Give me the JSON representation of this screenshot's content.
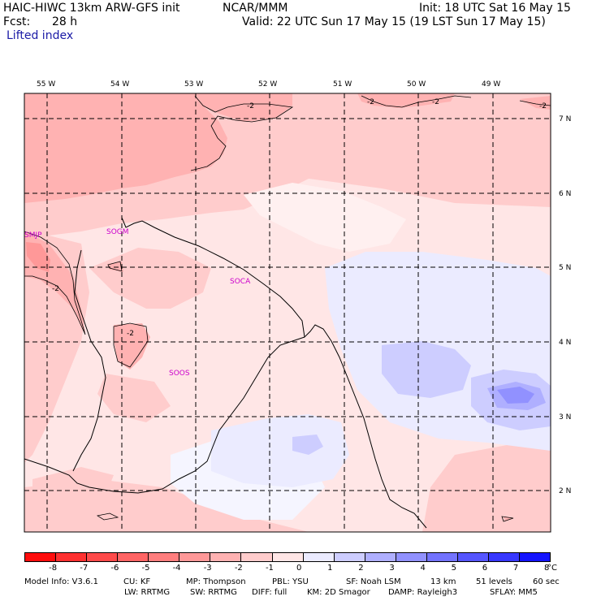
{
  "header": {
    "model_name": "HAIC-HIWC 13km ARW-GFS init",
    "org": "NCAR/MMM",
    "init": "Init: 18 UTC Sat 16 May 15",
    "fcst_label": "Fcst:",
    "fcst_value": "28 h",
    "valid": "Valid: 22 UTC Sun 17 May 15 (19 LST Sun 17 May 15)",
    "field": "Lifted index"
  },
  "map": {
    "lon_labels": [
      "55 W",
      "54 W",
      "53 W",
      "52 W",
      "51 W",
      "50 W",
      "49 W"
    ],
    "lat_labels": [
      "7 N",
      "6 N",
      "5 N",
      "4 N",
      "3 N",
      "2 N"
    ],
    "stations": [
      "SMJP",
      "SOGM",
      "SOCA",
      "SOOS"
    ],
    "contour_labels": [
      "-2",
      "-2",
      "-2",
      "-2",
      "-2",
      "-2"
    ]
  },
  "colorbar": {
    "ticks": [
      "-8",
      "-7",
      "-6",
      "-5",
      "-4",
      "-3",
      "-2",
      "-1",
      "0",
      "1",
      "2",
      "3",
      "4",
      "5",
      "6",
      "7",
      "8"
    ],
    "unit": "°C",
    "colors": [
      "#ff0d0d",
      "#ff3030",
      "#ff4a4a",
      "#ff6464",
      "#ff7e7e",
      "#ff9898",
      "#ffb2b2",
      "#ffcccc",
      "#ffe6e6",
      "#ebebff",
      "#cdcdff",
      "#afafff",
      "#9191ff",
      "#7373ff",
      "#5555ff",
      "#3737ff",
      "#1414ff"
    ]
  },
  "footer": {
    "line1": [
      "Model Info: V3.6.1",
      "CU: KF",
      "MP: Thompson",
      "PBL: YSU",
      "SF: Noah LSM",
      "13 km",
      "51 levels",
      "60 sec"
    ],
    "line2": [
      "LW: RRTMG",
      "SW: RRTMG",
      "DIFF: full",
      "KM: 2D Smagor",
      "DAMP: Rayleigh3",
      "SFLAY: MM5"
    ]
  }
}
